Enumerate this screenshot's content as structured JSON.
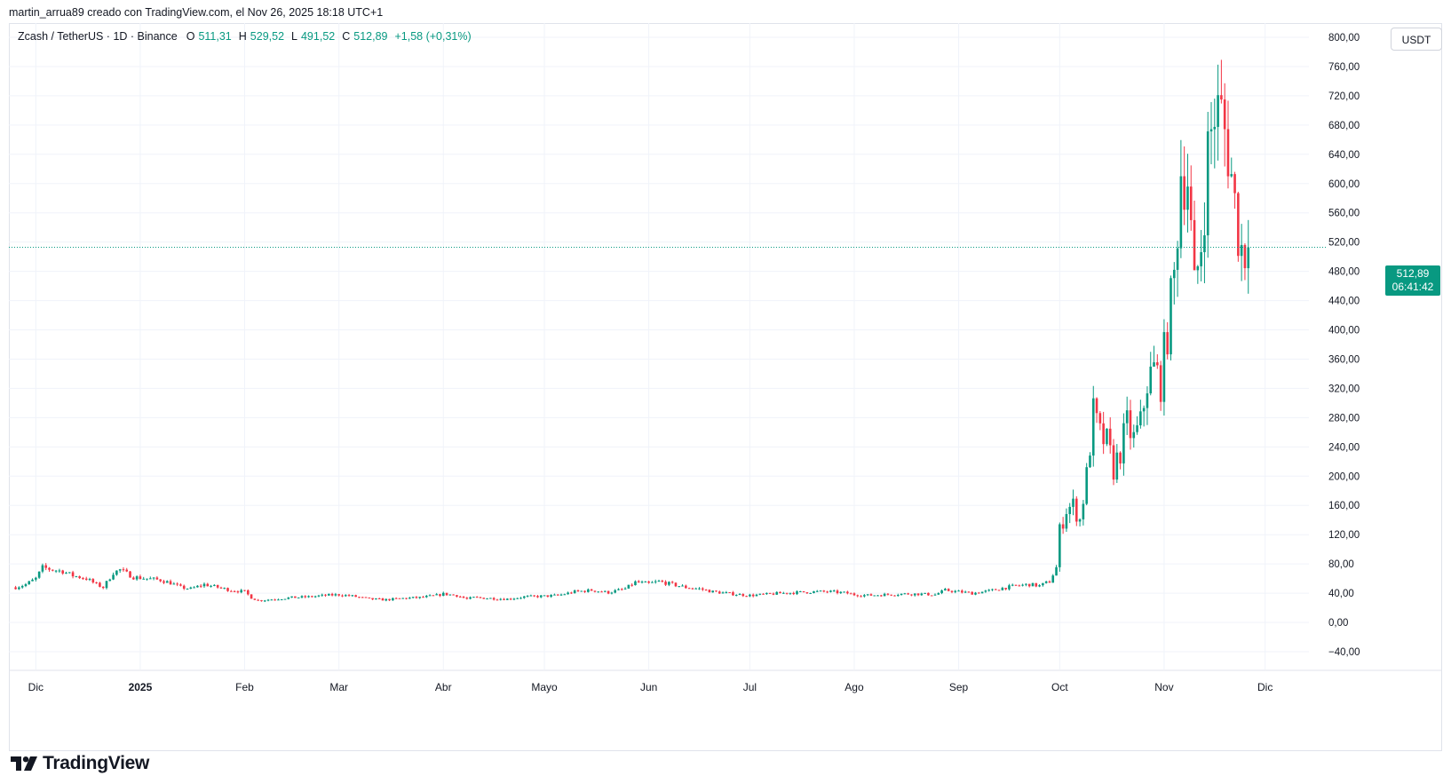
{
  "header": {
    "attribution": "martin_arrua89 creado con TradingView.com, el Nov 26, 2025 18:18 UTC+1"
  },
  "legend": {
    "symbol": "Zcash / TetherUS · 1D · Binance",
    "open_label": "O",
    "open_value": "511,31",
    "high_label": "H",
    "high_value": "529,52",
    "low_label": "L",
    "low_value": "491,52",
    "close_label": "C",
    "close_value": "512,89",
    "change_value": "+1,58 (+0,31%)"
  },
  "currency_button": {
    "label": "USDT"
  },
  "price_tag": {
    "price": "512,89",
    "countdown": "06:41:42"
  },
  "logo": {
    "text": "TradingView"
  },
  "colors": {
    "up": "#089981",
    "down": "#f23645",
    "grid": "#f0f3fa",
    "axis_text": "#131722"
  },
  "chart_data": {
    "type": "candlestick",
    "title": "",
    "last_price": 512.89,
    "ylim": [
      -40,
      800
    ],
    "y_ticks": [
      {
        "value": 800,
        "label": "800,00"
      },
      {
        "value": 760,
        "label": "760,00"
      },
      {
        "value": 720,
        "label": "720,00"
      },
      {
        "value": 680,
        "label": "680,00"
      },
      {
        "value": 640,
        "label": "640,00"
      },
      {
        "value": 600,
        "label": "600,00"
      },
      {
        "value": 560,
        "label": "560,00"
      },
      {
        "value": 520,
        "label": "520,00"
      },
      {
        "value": 480,
        "label": "480,00"
      },
      {
        "value": 440,
        "label": "440,00"
      },
      {
        "value": 400,
        "label": "400,00"
      },
      {
        "value": 360,
        "label": "360,00"
      },
      {
        "value": 320,
        "label": "320,00"
      },
      {
        "value": 280,
        "label": "280,00"
      },
      {
        "value": 240,
        "label": "240,00"
      },
      {
        "value": 200,
        "label": "200,00"
      },
      {
        "value": 160,
        "label": "160,00"
      },
      {
        "value": 120,
        "label": "120,00"
      },
      {
        "value": 80,
        "label": "80,00"
      },
      {
        "value": 40,
        "label": "40,00"
      },
      {
        "value": 0,
        "label": "0,00"
      },
      {
        "value": -40,
        "label": "−40,00"
      }
    ],
    "x_ticks": [
      {
        "date": "2024-12-01",
        "label": "Dic",
        "bold": false
      },
      {
        "date": "2025-01-01",
        "label": "2025",
        "bold": true
      },
      {
        "date": "2025-02-01",
        "label": "Feb",
        "bold": false
      },
      {
        "date": "2025-03-01",
        "label": "Mar",
        "bold": false
      },
      {
        "date": "2025-04-01",
        "label": "Abr",
        "bold": false
      },
      {
        "date": "2025-05-01",
        "label": "Mayo",
        "bold": false
      },
      {
        "date": "2025-06-01",
        "label": "Jun",
        "bold": false
      },
      {
        "date": "2025-07-01",
        "label": "Jul",
        "bold": false
      },
      {
        "date": "2025-08-01",
        "label": "Ago",
        "bold": false
      },
      {
        "date": "2025-09-01",
        "label": "Sep",
        "bold": false
      },
      {
        "date": "2025-10-01",
        "label": "Oct",
        "bold": false
      },
      {
        "date": "2025-11-01",
        "label": "Nov",
        "bold": false
      },
      {
        "date": "2025-12-01",
        "label": "Dic",
        "bold": false
      }
    ],
    "candles_daily_close_anchors": [
      [
        "2024-11-25",
        48
      ],
      [
        "2024-11-28",
        52
      ],
      [
        "2024-12-01",
        60
      ],
      [
        "2024-12-03",
        75
      ],
      [
        "2024-12-06",
        72
      ],
      [
        "2024-12-09",
        70
      ],
      [
        "2024-12-12",
        64
      ],
      [
        "2024-12-16",
        60
      ],
      [
        "2024-12-19",
        52
      ],
      [
        "2024-12-21",
        48
      ],
      [
        "2024-12-24",
        68
      ],
      [
        "2024-12-26",
        72
      ],
      [
        "2024-12-30",
        62
      ],
      [
        "2025-01-03",
        60
      ],
      [
        "2025-01-07",
        58
      ],
      [
        "2025-01-10",
        54
      ],
      [
        "2025-01-13",
        48
      ],
      [
        "2025-01-16",
        46
      ],
      [
        "2025-01-20",
        52
      ],
      [
        "2025-01-24",
        48
      ],
      [
        "2025-01-28",
        44
      ],
      [
        "2025-02-01",
        42
      ],
      [
        "2025-02-03",
        34
      ],
      [
        "2025-02-05",
        30
      ],
      [
        "2025-02-10",
        32
      ],
      [
        "2025-02-15",
        34
      ],
      [
        "2025-02-20",
        35
      ],
      [
        "2025-02-25",
        37
      ],
      [
        "2025-03-01",
        38
      ],
      [
        "2025-03-05",
        36
      ],
      [
        "2025-03-10",
        32
      ],
      [
        "2025-03-15",
        31
      ],
      [
        "2025-03-20",
        33
      ],
      [
        "2025-03-25",
        34
      ],
      [
        "2025-03-30",
        37
      ],
      [
        "2025-04-01",
        39
      ],
      [
        "2025-04-05",
        37
      ],
      [
        "2025-04-08",
        32
      ],
      [
        "2025-04-10",
        34
      ],
      [
        "2025-04-15",
        33
      ],
      [
        "2025-04-20",
        32
      ],
      [
        "2025-04-25",
        35
      ],
      [
        "2025-05-01",
        36
      ],
      [
        "2025-05-05",
        37
      ],
      [
        "2025-05-10",
        42
      ],
      [
        "2025-05-15",
        44
      ],
      [
        "2025-05-20",
        41
      ],
      [
        "2025-05-25",
        46
      ],
      [
        "2025-05-28",
        55
      ],
      [
        "2025-06-01",
        53
      ],
      [
        "2025-06-04",
        56
      ],
      [
        "2025-06-08",
        52
      ],
      [
        "2025-06-12",
        48
      ],
      [
        "2025-06-16",
        46
      ],
      [
        "2025-06-20",
        42
      ],
      [
        "2025-06-24",
        40
      ],
      [
        "2025-06-28",
        38
      ],
      [
        "2025-07-01",
        37
      ],
      [
        "2025-07-05",
        38
      ],
      [
        "2025-07-10",
        40
      ],
      [
        "2025-07-15",
        41
      ],
      [
        "2025-07-20",
        42
      ],
      [
        "2025-07-25",
        42
      ],
      [
        "2025-07-30",
        40
      ],
      [
        "2025-08-01",
        38
      ],
      [
        "2025-08-05",
        37
      ],
      [
        "2025-08-10",
        38
      ],
      [
        "2025-08-15",
        39
      ],
      [
        "2025-08-20",
        39
      ],
      [
        "2025-08-25",
        38
      ],
      [
        "2025-08-28",
        44
      ],
      [
        "2025-09-01",
        42
      ],
      [
        "2025-09-05",
        40
      ],
      [
        "2025-09-10",
        43
      ],
      [
        "2025-09-14",
        47
      ],
      [
        "2025-09-18",
        50
      ],
      [
        "2025-09-22",
        52
      ],
      [
        "2025-09-25",
        50
      ],
      [
        "2025-09-28",
        56
      ],
      [
        "2025-09-30",
        75
      ],
      [
        "2025-10-01",
        125
      ],
      [
        "2025-10-03",
        155
      ],
      [
        "2025-10-05",
        160
      ],
      [
        "2025-10-07",
        140
      ],
      [
        "2025-10-09",
        200
      ],
      [
        "2025-10-11",
        285
      ],
      [
        "2025-10-13",
        255
      ],
      [
        "2025-10-15",
        245
      ],
      [
        "2025-10-17",
        210
      ],
      [
        "2025-10-19",
        235
      ],
      [
        "2025-10-21",
        270
      ],
      [
        "2025-10-23",
        250
      ],
      [
        "2025-10-25",
        270
      ],
      [
        "2025-10-27",
        330
      ],
      [
        "2025-10-29",
        345
      ],
      [
        "2025-10-31",
        330
      ],
      [
        "2025-11-02",
        400
      ],
      [
        "2025-11-04",
        470
      ],
      [
        "2025-11-06",
        620
      ],
      [
        "2025-11-08",
        610
      ],
      [
        "2025-11-10",
        450
      ],
      [
        "2025-11-12",
        520
      ],
      [
        "2025-11-14",
        640
      ],
      [
        "2025-11-16",
        700
      ],
      [
        "2025-11-18",
        690
      ],
      [
        "2025-11-20",
        650
      ],
      [
        "2025-11-22",
        570
      ],
      [
        "2025-11-24",
        510
      ],
      [
        "2025-11-26",
        512.89
      ]
    ]
  }
}
